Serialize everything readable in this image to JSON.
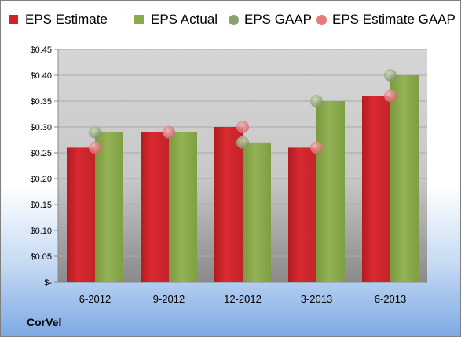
{
  "company": "CorVel",
  "legend": [
    {
      "label": "EPS Estimate",
      "color": "#d2232a",
      "shape": "square"
    },
    {
      "label": "EPS Actual",
      "color": "#8aab48",
      "shape": "square"
    },
    {
      "label": "EPS GAAP",
      "color": "#8aa36a",
      "shape": "circle"
    },
    {
      "label": "EPS Estimate GAAP",
      "color": "#e57c7c",
      "shape": "circle"
    }
  ],
  "chart_data": {
    "type": "bar",
    "categories": [
      "6-2012",
      "9-2012",
      "12-2012",
      "3-2013",
      "6-2013"
    ],
    "series": [
      {
        "name": "EPS Estimate",
        "kind": "bar",
        "color": "#d2232a",
        "values": [
          0.26,
          0.29,
          0.3,
          0.26,
          0.36
        ]
      },
      {
        "name": "EPS Actual",
        "kind": "bar",
        "color": "#8aab48",
        "values": [
          0.29,
          0.29,
          0.27,
          0.35,
          0.4
        ]
      },
      {
        "name": "EPS GAAP",
        "kind": "scatter",
        "color": "#8aa36a",
        "values": [
          0.29,
          0.29,
          0.27,
          0.35,
          0.4
        ]
      },
      {
        "name": "EPS Estimate GAAP",
        "kind": "scatter",
        "color": "#e57c7c",
        "values": [
          0.26,
          0.29,
          0.3,
          0.26,
          0.36
        ]
      }
    ],
    "y_ticks": [
      "$-",
      "$0.05",
      "$0.10",
      "$0.15",
      "$0.20",
      "$0.25",
      "$0.30",
      "$0.35",
      "$0.40",
      "$0.45"
    ],
    "ylim": [
      0,
      0.45
    ],
    "grid": true,
    "legend_position": "top"
  }
}
